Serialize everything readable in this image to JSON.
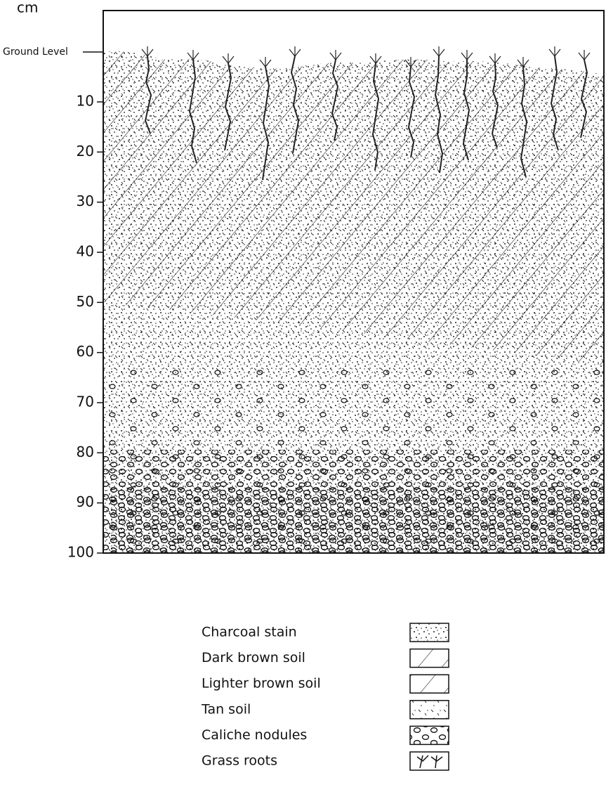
{
  "axis": {
    "unit": "cm",
    "ground_label": "Ground Level",
    "ticks": [
      10,
      20,
      30,
      40,
      50,
      60,
      70,
      80,
      90,
      100
    ]
  },
  "legend": [
    "Charcoal stain",
    "Dark brown soil",
    "Lighter brown soil",
    "Tan  soil",
    "Caliche nodules",
    "Grass roots"
  ]
}
